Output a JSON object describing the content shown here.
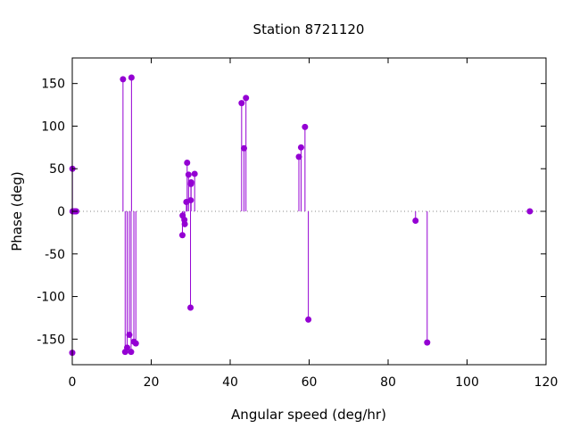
{
  "chart_data": {
    "type": "scatter",
    "style": "impulses-with-points",
    "title": "Station 8721120",
    "xlabel": "Angular speed (deg/hr)",
    "ylabel": "Phase (deg)",
    "xlim": [
      0,
      120
    ],
    "ylim": [
      -180,
      180
    ],
    "xticks": [
      0,
      20,
      40,
      60,
      80,
      100,
      120
    ],
    "yticks": [
      -150,
      -100,
      -50,
      0,
      50,
      100,
      150
    ],
    "zero_line": "dotted",
    "grid": false,
    "legend": "none",
    "color": "#9400d3",
    "series": [
      {
        "points": [
          {
            "x": 0.0,
            "y": -166
          },
          {
            "x": 0.04,
            "y": 50
          },
          {
            "x": 0.08,
            "y": 0
          },
          {
            "x": 0.5,
            "y": 0
          },
          {
            "x": 0.8,
            "y": 0
          },
          {
            "x": 1.0,
            "y": 0
          },
          {
            "x": 12.85,
            "y": 155
          },
          {
            "x": 13.4,
            "y": -165
          },
          {
            "x": 13.9,
            "y": -160
          },
          {
            "x": 14.45,
            "y": -145
          },
          {
            "x": 14.9,
            "y": -165
          },
          {
            "x": 15.0,
            "y": 157
          },
          {
            "x": 15.6,
            "y": -153
          },
          {
            "x": 16.1,
            "y": -155
          },
          {
            "x": 27.9,
            "y": -28
          },
          {
            "x": 27.95,
            "y": -5
          },
          {
            "x": 28.4,
            "y": -10
          },
          {
            "x": 28.5,
            "y": -15
          },
          {
            "x": 28.9,
            "y": 11
          },
          {
            "x": 29.1,
            "y": 57
          },
          {
            "x": 29.45,
            "y": 43
          },
          {
            "x": 29.95,
            "y": -113
          },
          {
            "x": 30.0,
            "y": 13
          },
          {
            "x": 30.05,
            "y": 32
          },
          {
            "x": 30.1,
            "y": 34
          },
          {
            "x": 31.0,
            "y": 44
          },
          {
            "x": 42.9,
            "y": 127
          },
          {
            "x": 43.5,
            "y": 74
          },
          {
            "x": 44.0,
            "y": 133
          },
          {
            "x": 57.4,
            "y": 64
          },
          {
            "x": 57.95,
            "y": 75
          },
          {
            "x": 58.95,
            "y": 99
          },
          {
            "x": 59.8,
            "y": -127
          },
          {
            "x": 86.95,
            "y": -11
          },
          {
            "x": 89.9,
            "y": -154
          },
          {
            "x": 115.9,
            "y": 0
          }
        ]
      }
    ]
  }
}
